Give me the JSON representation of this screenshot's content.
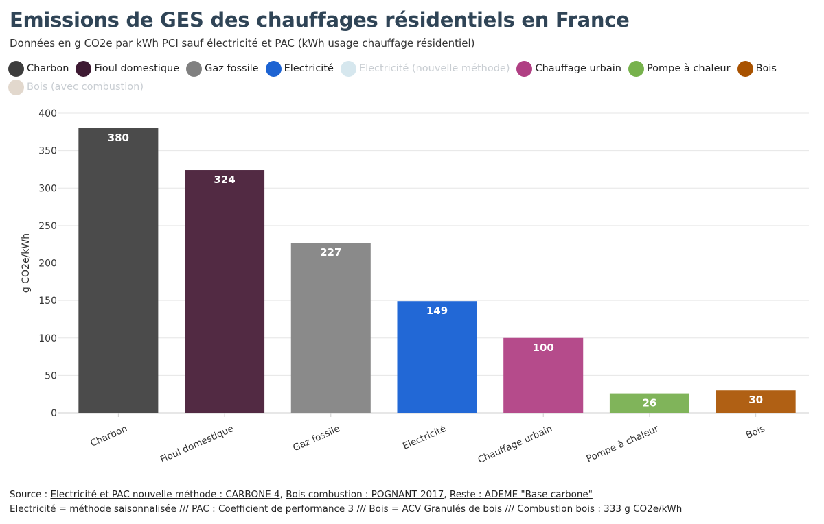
{
  "title": "Emissions de GES des chauffages résidentiels en France",
  "subtitle": "Données en g CO2e par kWh PCI sauf électricité et PAC (kWh usage chauffage résidentiel)",
  "legend": [
    {
      "label": "Charbon",
      "color": "#3d3d3d",
      "muted": false
    },
    {
      "label": "Fioul domestique",
      "color": "#3e1a33",
      "muted": false
    },
    {
      "label": "Gaz fossile",
      "color": "#808080",
      "muted": false
    },
    {
      "label": "Electricité",
      "color": "#1d63d2",
      "muted": false
    },
    {
      "label": "Electricité (nouvelle méthode)",
      "color": "#d6e7ee",
      "muted": true
    },
    {
      "label": "Chauffage urbain",
      "color": "#b03f83",
      "muted": false
    },
    {
      "label": "Pompe à chaleur",
      "color": "#77b24c",
      "muted": false
    },
    {
      "label": "Bois",
      "color": "#a85200",
      "muted": false
    },
    {
      "label": "Bois (avec combustion)",
      "color": "#e2d8cd",
      "muted": true
    }
  ],
  "chart_data": {
    "type": "bar",
    "categories": [
      "Charbon",
      "Fioul domestique",
      "Gaz fossile",
      "Electricité",
      "Chauffage urbain",
      "Pompe à chaleur",
      "Bois"
    ],
    "values": [
      380,
      324,
      227,
      149,
      100,
      26,
      30
    ],
    "data_labels": [
      "380",
      "324",
      "227",
      "149",
      "100",
      "26",
      "30"
    ],
    "colors": [
      "#4b4b4b",
      "#522a43",
      "#8a8a8a",
      "#2268d6",
      "#b54b8b",
      "#80b45a",
      "#b06014"
    ],
    "ylabel": "g CO2e/kWh",
    "xlabel": "",
    "ylim": [
      0,
      400
    ],
    "yticks": [
      0,
      50,
      100,
      150,
      200,
      250,
      300,
      350,
      400
    ],
    "ytick_labels": [
      "0",
      "50",
      "100",
      "150",
      "200",
      "250",
      "300",
      "350",
      "400"
    ],
    "grid": true,
    "legend_position": "top"
  },
  "footer": {
    "source_prefix": "Source : ",
    "source_links": [
      "Electricité et PAC nouvelle méthode : CARBONE 4",
      "Bois combustion : POGNANT 2017",
      "Reste : ADEME \"Base carbone\""
    ],
    "separator": ", ",
    "notes": "Electricité = méthode saisonnalisée /// PAC : Coefficient de performance 3 /// Bois = ACV Granulés de bois /// Combustion bois : 333 g CO2e/kWh"
  }
}
